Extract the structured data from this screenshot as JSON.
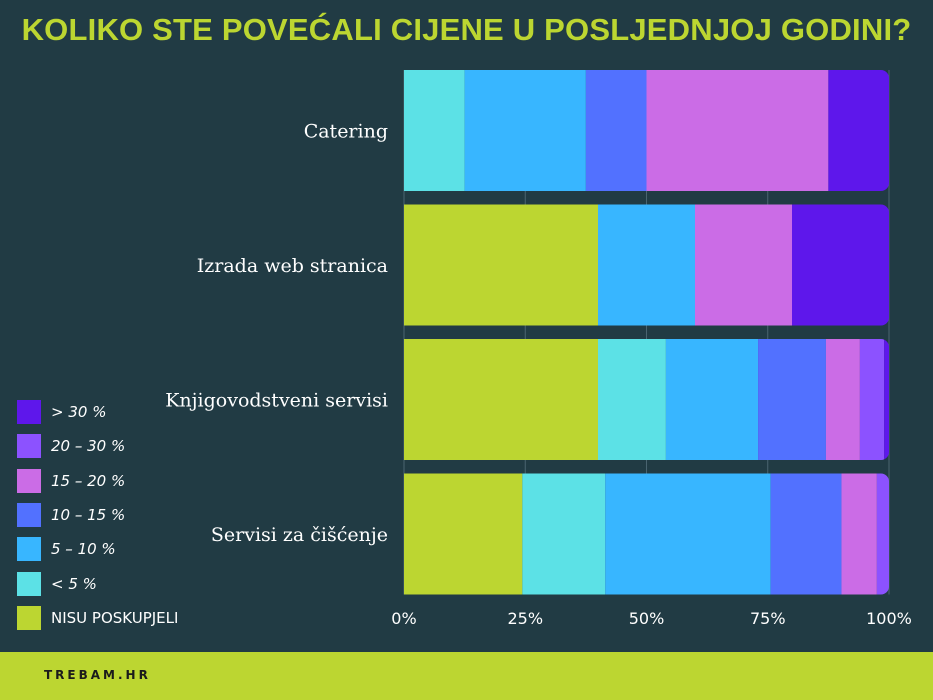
{
  "chart_data": {
    "type": "bar",
    "orientation": "horizontal",
    "stacked": "percent",
    "title": "KOLIKO STE POVEĆALI CIJENE U POSLJEDNJOJ GODINI?",
    "categories": [
      "Catering",
      "Izrada web stranica",
      "Knjigovodstveni servisi",
      "Servisi za čišćenje"
    ],
    "xlim": [
      0,
      100
    ],
    "xticks": [
      "0%",
      "25%",
      "50%",
      "75%",
      "100%"
    ],
    "grid": true,
    "legend_position": "left",
    "series": [
      {
        "name": "NISU POSKUPJELI",
        "color": "#bcd631",
        "values": [
          0,
          40,
          40,
          24.4
        ]
      },
      {
        "name": "< 5 %",
        "color": "#5ce1e6",
        "values": [
          12.5,
          0,
          14,
          17.1
        ]
      },
      {
        "name": "5 – 10 %",
        "color": "#38b6ff",
        "values": [
          25,
          20,
          19,
          34.1
        ]
      },
      {
        "name": "10 – 15 %",
        "color": "#5271ff",
        "values": [
          12.5,
          0,
          14,
          14.6
        ]
      },
      {
        "name": "15 – 20 %",
        "color": "#cb6ce6",
        "values": [
          37.5,
          20,
          7,
          7.3
        ]
      },
      {
        "name": "20 – 30 %",
        "color": "#8c52ff",
        "values": [
          0,
          0,
          5,
          2.5
        ]
      },
      {
        "name": "> 30 %",
        "color": "#5e17eb",
        "values": [
          12.5,
          20,
          1,
          0
        ]
      }
    ]
  },
  "footer": {
    "brand": "TREBAM.HR"
  }
}
